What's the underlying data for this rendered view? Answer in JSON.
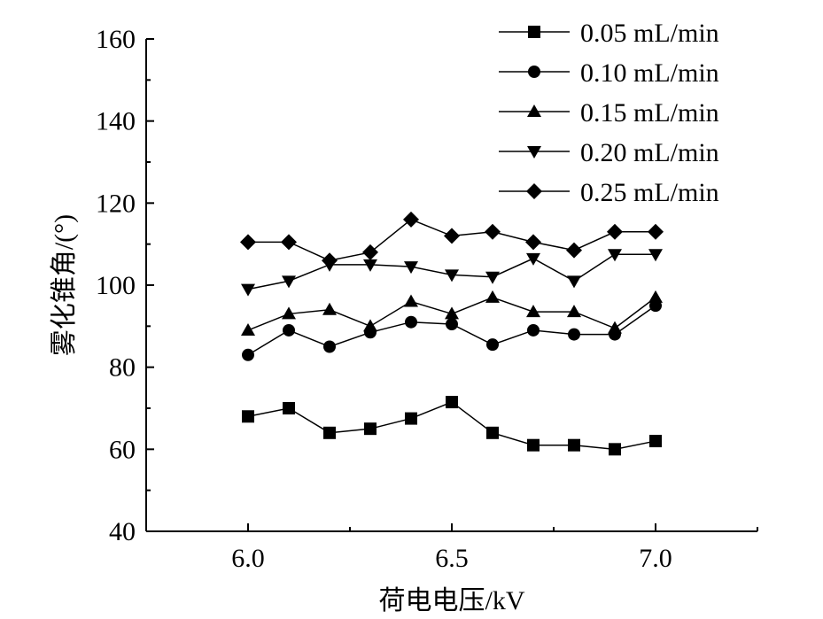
{
  "chart_data": {
    "type": "line",
    "title": "",
    "xlabel": "荷电电压/kV",
    "ylabel": "雾化锥角/(°)",
    "xlim": [
      5.75,
      7.25
    ],
    "ylim": [
      40,
      160
    ],
    "xticks": [
      6.0,
      6.5,
      7.0
    ],
    "xtick_labels": [
      "6.0",
      "6.5",
      "7.0"
    ],
    "yticks": [
      40,
      60,
      80,
      100,
      120,
      140,
      160
    ],
    "ytick_labels": [
      "40",
      "60",
      "80",
      "100",
      "120",
      "140",
      "160"
    ],
    "grid": false,
    "legend_position": "top-right",
    "x": [
      6.0,
      6.1,
      6.2,
      6.3,
      6.4,
      6.5,
      6.6,
      6.7,
      6.8,
      6.9,
      7.0
    ],
    "series": [
      {
        "name": "0.05 mL/min",
        "marker": "square",
        "values": [
          68,
          70,
          64,
          65,
          67.5,
          71.5,
          64,
          61,
          61,
          60,
          62
        ]
      },
      {
        "name": "0.10 mL/min",
        "marker": "circle",
        "values": [
          83,
          89,
          85,
          88.5,
          91,
          90.5,
          85.5,
          89,
          88,
          88,
          95
        ]
      },
      {
        "name": "0.15 mL/min",
        "marker": "triangle-up",
        "values": [
          89,
          93,
          94,
          90,
          96,
          93,
          97,
          93.5,
          93.5,
          89.5,
          97
        ]
      },
      {
        "name": "0.20 mL/min",
        "marker": "triangle-down",
        "values": [
          99,
          101,
          105,
          105,
          104.5,
          102.5,
          102,
          106.5,
          101,
          107.5,
          107.5
        ]
      },
      {
        "name": "0.25 mL/min",
        "marker": "diamond",
        "values": [
          110.5,
          110.5,
          106,
          108,
          116,
          112,
          113,
          110.5,
          108.5,
          113,
          113
        ]
      }
    ]
  }
}
